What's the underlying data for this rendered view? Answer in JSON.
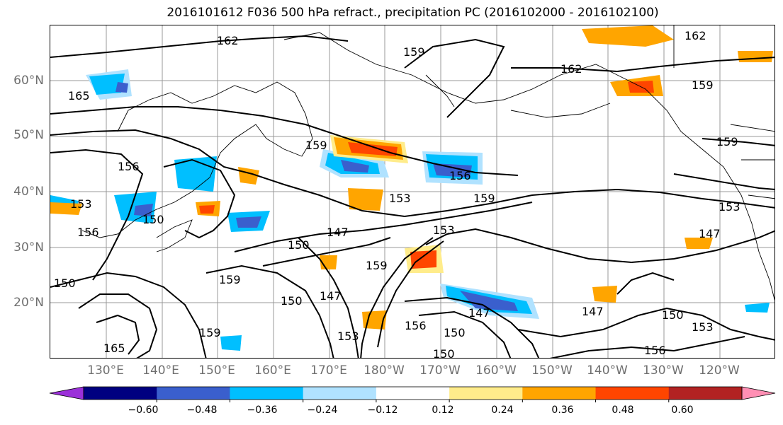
{
  "title": "2016101612 F036 500 hPa refract., precipitation PC (2016102000 - 2016102100)",
  "latitude_labels": [
    "60°N",
    "50°N",
    "40°N",
    "30°N",
    "20°N"
  ],
  "longitude_labels": [
    "130°E",
    "140°E",
    "150°E",
    "160°E",
    "170°E",
    "180°W",
    "170°W",
    "160°W",
    "150°W",
    "140°W",
    "130°W",
    "120°W"
  ],
  "contour_labels": [
    "162",
    "159",
    "162",
    "162",
    "159",
    "165",
    "159",
    "156",
    "156",
    "159",
    "153",
    "153",
    "159",
    "150",
    "147",
    "153",
    "150",
    "159",
    "156",
    "150",
    "147",
    "150",
    "156",
    "153",
    "147",
    "159",
    "150",
    "147",
    "150",
    "153",
    "156",
    "165",
    "159",
    "147",
    "153",
    "150"
  ],
  "colorbar": {
    "ticks": [
      "−0.60",
      "−0.48",
      "−0.36",
      "−0.24",
      "−0.12",
      "0.12",
      "0.24",
      "0.36",
      "0.48",
      "0.60"
    ],
    "colors": [
      "#9b30d9",
      "#000080",
      "#3a5fcd",
      "#00bfff",
      "#b0e2ff",
      "#ffffff",
      "#ffec8b",
      "#ffa500",
      "#ff4500",
      "#b22222",
      "#ff8fb4"
    ]
  },
  "colors": {
    "negative_light": "#b0e2ff",
    "negative_mid": "#00bfff",
    "negative_strong": "#3a5fcd",
    "positive_light": "#ffec8b",
    "positive_mid": "#ffa500",
    "positive_strong": "#ff4500",
    "contour": "#000000",
    "grid": "#999999"
  }
}
